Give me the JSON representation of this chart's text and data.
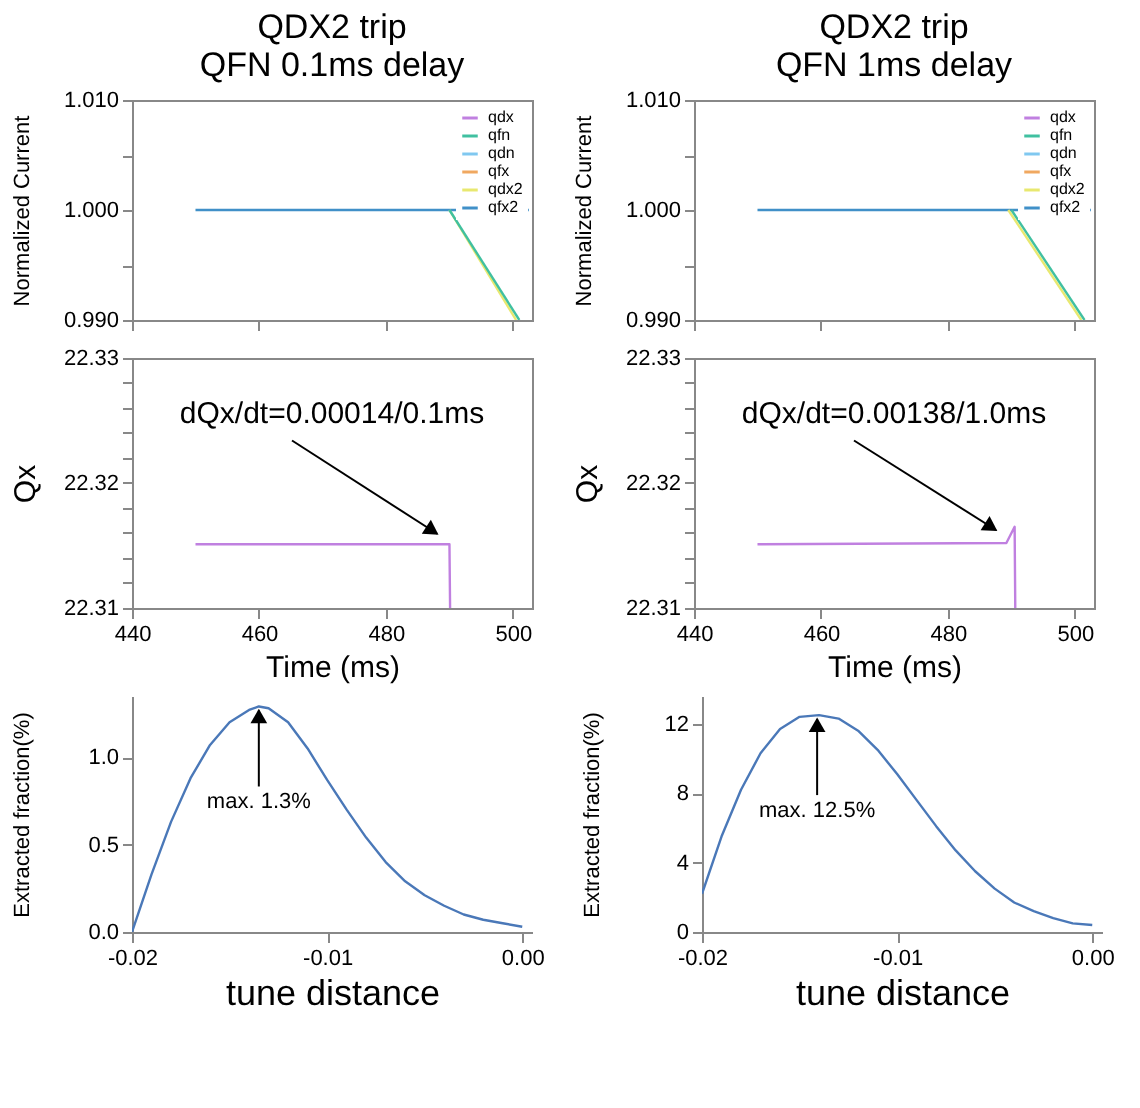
{
  "chart_data": [
    {
      "type": "line",
      "title": "QDX2 trip\nQFN 0.1ms delay",
      "ylabel": "Normalized Current",
      "xlim": [
        440,
        503
      ],
      "xticks": [
        440,
        460,
        480,
        500
      ],
      "ylim": [
        0.99,
        1.01
      ],
      "yticks": [
        {
          "value": 0.99,
          "label": "0.990"
        },
        {
          "value": 0.995,
          "label": null
        },
        {
          "value": 1.0,
          "label": "1.000"
        },
        {
          "value": 1.005,
          "label": null
        },
        {
          "value": 1.01,
          "label": "1.010"
        }
      ],
      "tick_labels": "y",
      "legend": "top right",
      "series": [
        {
          "name": "qdx",
          "color": "#c080e0"
        },
        {
          "name": "qfn",
          "color": "#40c0a0",
          "x": [
            490,
            501
          ],
          "values": [
            1.0,
            0.99
          ]
        },
        {
          "name": "qdn",
          "color": "#80c8f0"
        },
        {
          "name": "qfx",
          "color": "#f0a860"
        },
        {
          "name": "qdx2",
          "color": "#e8e870",
          "x": [
            490,
            500.5
          ],
          "values": [
            1.0,
            0.99
          ]
        },
        {
          "name": "qfx2",
          "color": "#4090c8",
          "x": [
            450,
            502.5
          ],
          "values": [
            1.0,
            1.0
          ]
        }
      ]
    },
    {
      "type": "line",
      "title": "QDX2 trip\nQFN 1ms delay",
      "ylabel": "Normalized Current",
      "xlim": [
        440,
        503
      ],
      "xticks": [
        440,
        460,
        480,
        500
      ],
      "ylim": [
        0.99,
        1.01
      ],
      "yticks": [
        {
          "value": 0.99,
          "label": "0.990"
        },
        {
          "value": 0.995,
          "label": null
        },
        {
          "value": 1.0,
          "label": "1.000"
        },
        {
          "value": 1.005,
          "label": null
        },
        {
          "value": 1.01,
          "label": "1.010"
        }
      ],
      "tick_labels": "y",
      "legend": "top right",
      "series": [
        {
          "name": "qdx",
          "color": "#c080e0"
        },
        {
          "name": "qfn",
          "color": "#40c0a0",
          "x": [
            490,
            501.5
          ],
          "values": [
            1.0,
            0.99
          ]
        },
        {
          "name": "qdn",
          "color": "#80c8f0"
        },
        {
          "name": "qfx",
          "color": "#f0a860"
        },
        {
          "name": "qdx2",
          "color": "#e8e870",
          "x": [
            489.5,
            501
          ],
          "values": [
            1.0,
            0.99
          ]
        },
        {
          "name": "qfx2",
          "color": "#4090c8",
          "x": [
            450,
            502.5
          ],
          "values": [
            1.0,
            1.0
          ]
        }
      ]
    },
    {
      "type": "line",
      "xlabel": "Time (ms)",
      "ylabel": "Qx",
      "xlim": [
        440,
        503
      ],
      "xticks": [
        440,
        460,
        480,
        500
      ],
      "ylim": [
        22.31,
        22.33
      ],
      "yticks": [
        22.31,
        {
          "value": 22.312,
          "label": null
        },
        {
          "value": 22.314,
          "label": null
        },
        {
          "value": 22.316,
          "label": null
        },
        {
          "value": 22.318,
          "label": null
        },
        22.32,
        {
          "value": 22.322,
          "label": null
        },
        {
          "value": 22.324,
          "label": null
        },
        {
          "value": 22.326,
          "label": null
        },
        {
          "value": 22.328,
          "label": null
        },
        22.33
      ],
      "annotations": [
        {
          "text": "dQx/dt=0.00014/0.1ms",
          "x": 489,
          "y": 22.3153
        }
      ],
      "series": [
        {
          "color": "#c080e0",
          "x": [
            450,
            490,
            490.1
          ],
          "values": [
            22.3151,
            22.3151,
            22.31
          ]
        }
      ]
    },
    {
      "type": "line",
      "xlabel": "Time (ms)",
      "ylabel": "Qx",
      "xlim": [
        440,
        503
      ],
      "xticks": [
        440,
        460,
        480,
        500
      ],
      "ylim": [
        22.31,
        22.33
      ],
      "yticks": [
        22.31,
        {
          "value": 22.312,
          "label": null
        },
        {
          "value": 22.314,
          "label": null
        },
        {
          "value": 22.316,
          "label": null
        },
        {
          "value": 22.318,
          "label": null
        },
        22.32,
        {
          "value": 22.322,
          "label": null
        },
        {
          "value": 22.324,
          "label": null
        },
        {
          "value": 22.326,
          "label": null
        },
        {
          "value": 22.328,
          "label": null
        },
        22.33
      ],
      "annotations": [
        {
          "text": "dQx/dt=0.00138/1.0ms",
          "x": 488.5,
          "y": 22.3156
        }
      ],
      "series": [
        {
          "color": "#c080e0",
          "x": [
            450,
            489.2,
            490.5,
            490.6
          ],
          "values": [
            22.3151,
            22.3152,
            22.3165,
            22.31
          ]
        }
      ]
    },
    {
      "type": "line",
      "xlabel": "tune distance",
      "ylabel": "Extracted fraction(%)",
      "xlim": [
        -0.02,
        0.0005
      ],
      "xticks": [
        -0.02,
        -0.01,
        {
          "value": 0,
          "label": "0.00"
        }
      ],
      "ylim": [
        0,
        1.35
      ],
      "yticks": [
        {
          "value": 0,
          "label": "0.0"
        },
        0.5,
        {
          "value": 1,
          "label": "1.0"
        }
      ],
      "annotations": [
        {
          "text": "max. 1.3%",
          "x": -0.0135,
          "y": 1.29
        }
      ],
      "series": [
        {
          "color": "#4a78b8",
          "x": [
            -0.02,
            -0.019,
            -0.018,
            -0.017,
            -0.016,
            -0.015,
            -0.014,
            -0.0135,
            -0.013,
            -0.012,
            -0.011,
            -0.01,
            -0.009,
            -0.008,
            -0.007,
            -0.006,
            -0.005,
            -0.004,
            -0.003,
            -0.002,
            -0.001,
            0
          ],
          "values": [
            0,
            0.33,
            0.63,
            0.88,
            1.07,
            1.2,
            1.27,
            1.29,
            1.28,
            1.2,
            1.05,
            0.87,
            0.7,
            0.54,
            0.4,
            0.29,
            0.21,
            0.15,
            0.1,
            0.07,
            0.05,
            0.03
          ]
        }
      ]
    },
    {
      "type": "line",
      "xlabel": "tune distance",
      "ylabel": "Extracted fraction(%)",
      "xlim": [
        -0.02,
        0.0005
      ],
      "xticks": [
        -0.02,
        -0.01,
        {
          "value": 0,
          "label": "0.00"
        }
      ],
      "ylim": [
        0,
        13.6
      ],
      "yticks": [
        0,
        4,
        8,
        12
      ],
      "annotations": [
        {
          "text": "max. 12.5%",
          "x": -0.0141,
          "y": 12.5
        }
      ],
      "series": [
        {
          "color": "#4a78b8",
          "x": [
            -0.02,
            -0.019,
            -0.018,
            -0.017,
            -0.016,
            -0.015,
            -0.014,
            -0.013,
            -0.012,
            -0.011,
            -0.01,
            -0.009,
            -0.008,
            -0.007,
            -0.006,
            -0.005,
            -0.004,
            -0.003,
            -0.002,
            -0.001,
            0
          ],
          "values": [
            2.2,
            5.5,
            8.2,
            10.3,
            11.7,
            12.4,
            12.5,
            12.3,
            11.6,
            10.5,
            9.1,
            7.6,
            6.1,
            4.7,
            3.5,
            2.5,
            1.7,
            1.2,
            0.8,
            0.5,
            0.4
          ]
        }
      ]
    }
  ]
}
